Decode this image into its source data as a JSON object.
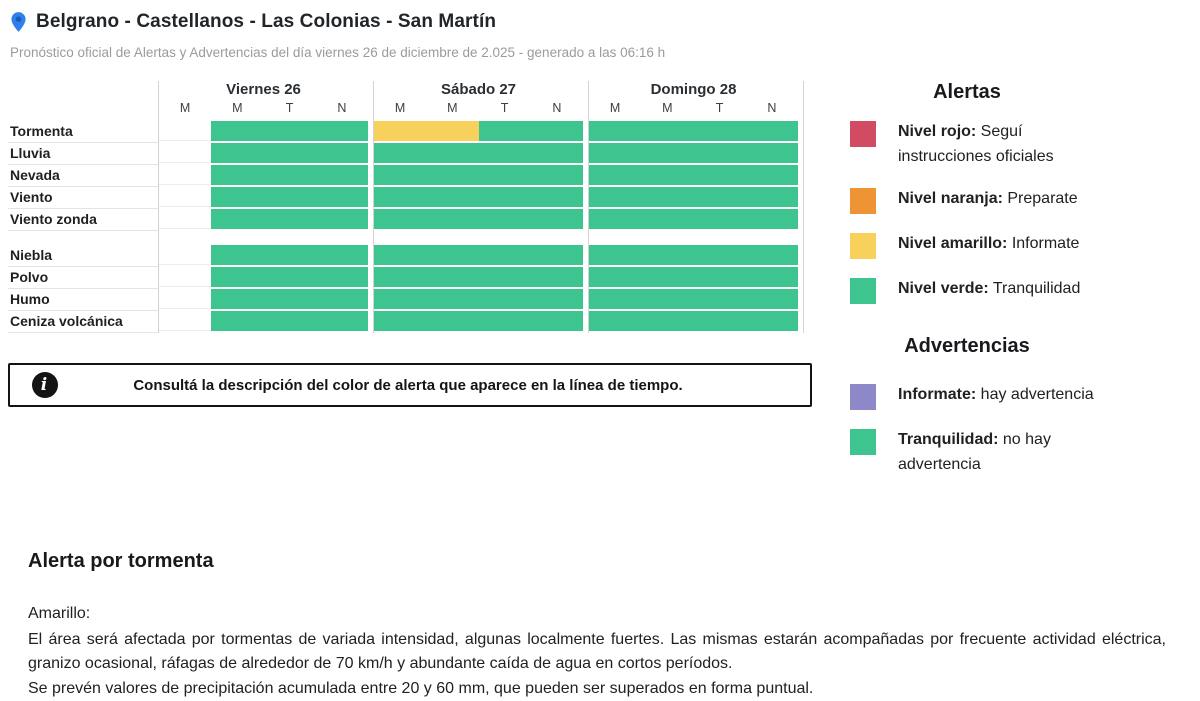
{
  "header": {
    "title": "Belgrano - Castellanos - Las Colonias - San Martín",
    "subtitle": "Pronóstico oficial de Alertas y Advertencias del día viernes 26 de diciembre de 2.025 - generado a las 06:16 h"
  },
  "colors": {
    "green": "#3dc48f",
    "yellow": "#f8d05c",
    "red": "#d14b63",
    "orange": "#ee9435",
    "purple": "#8d89c8",
    "pin_blue": "#2f80ed",
    "grid_line": "#d2d2d2"
  },
  "timeline": {
    "days": [
      {
        "label": "Viernes 26",
        "periods": [
          "M",
          "M",
          "T",
          "N"
        ]
      },
      {
        "label": "Sábado 27",
        "periods": [
          "M",
          "M",
          "T",
          "N"
        ]
      },
      {
        "label": "Domingo 28",
        "periods": [
          "M",
          "M",
          "T",
          "N"
        ]
      }
    ],
    "row_groups": [
      {
        "rows": [
          {
            "label": "Tormenta",
            "cells": [
              [
                "empty",
                "green",
                "green",
                "green"
              ],
              [
                "yellow",
                "yellow",
                "green",
                "green"
              ],
              [
                "green",
                "green",
                "green",
                "green"
              ]
            ]
          },
          {
            "label": "Lluvia",
            "cells": [
              [
                "empty",
                "green",
                "green",
                "green"
              ],
              [
                "green",
                "green",
                "green",
                "green"
              ],
              [
                "green",
                "green",
                "green",
                "green"
              ]
            ]
          },
          {
            "label": "Nevada",
            "cells": [
              [
                "empty",
                "green",
                "green",
                "green"
              ],
              [
                "green",
                "green",
                "green",
                "green"
              ],
              [
                "green",
                "green",
                "green",
                "green"
              ]
            ]
          },
          {
            "label": "Viento",
            "cells": [
              [
                "empty",
                "green",
                "green",
                "green"
              ],
              [
                "green",
                "green",
                "green",
                "green"
              ],
              [
                "green",
                "green",
                "green",
                "green"
              ]
            ]
          },
          {
            "label": "Viento zonda",
            "cells": [
              [
                "empty",
                "green",
                "green",
                "green"
              ],
              [
                "green",
                "green",
                "green",
                "green"
              ],
              [
                "green",
                "green",
                "green",
                "green"
              ]
            ]
          }
        ]
      },
      {
        "rows": [
          {
            "label": "Niebla",
            "cells": [
              [
                "empty",
                "green",
                "green",
                "green"
              ],
              [
                "green",
                "green",
                "green",
                "green"
              ],
              [
                "green",
                "green",
                "green",
                "green"
              ]
            ]
          },
          {
            "label": "Polvo",
            "cells": [
              [
                "empty",
                "green",
                "green",
                "green"
              ],
              [
                "green",
                "green",
                "green",
                "green"
              ],
              [
                "green",
                "green",
                "green",
                "green"
              ]
            ]
          },
          {
            "label": "Humo",
            "cells": [
              [
                "empty",
                "green",
                "green",
                "green"
              ],
              [
                "green",
                "green",
                "green",
                "green"
              ],
              [
                "green",
                "green",
                "green",
                "green"
              ]
            ]
          },
          {
            "label": "Ceniza volcánica",
            "cells": [
              [
                "empty",
                "green",
                "green",
                "green"
              ],
              [
                "green",
                "green",
                "green",
                "green"
              ],
              [
                "green",
                "green",
                "green",
                "green"
              ]
            ]
          }
        ]
      }
    ]
  },
  "info_box": {
    "icon_glyph": "i",
    "text": "Consultá la descripción del color de alerta que aparece en la línea de tiempo."
  },
  "legend": {
    "alertas": {
      "title": "Alertas",
      "items": [
        {
          "color": "#d14b63",
          "label": "Nivel rojo:",
          "description": "Seguí instrucciones oficiales"
        },
        {
          "color": "#ee9435",
          "label": "Nivel naranja:",
          "description": "Preparate"
        },
        {
          "color": "#f8d05c",
          "label": "Nivel amarillo:",
          "description": "Informate"
        },
        {
          "color": "#3dc48f",
          "label": "Nivel verde:",
          "description": "Tranquilidad"
        }
      ]
    },
    "advertencias": {
      "title": "Advertencias",
      "items": [
        {
          "color": "#8d89c8",
          "label": "Informate:",
          "description": "hay advertencia"
        },
        {
          "color": "#3dc48f",
          "label": "Tranquilidad:",
          "description": "no hay advertencia"
        }
      ]
    }
  },
  "detail": {
    "title": "Alerta por tormenta",
    "level": "Amarillo:",
    "paragraphs": [
      "El área será afectada por tormentas de variada intensidad, algunas localmente fuertes. Las mismas estarán acompañadas por frecuente actividad eléctrica, granizo ocasional, ráfagas de alrededor de 70 km/h y abundante caída de agua en cortos períodos.",
      "Se prevén valores de precipitación acumulada entre 20 y 60 mm, que pueden ser superados en forma puntual."
    ]
  }
}
